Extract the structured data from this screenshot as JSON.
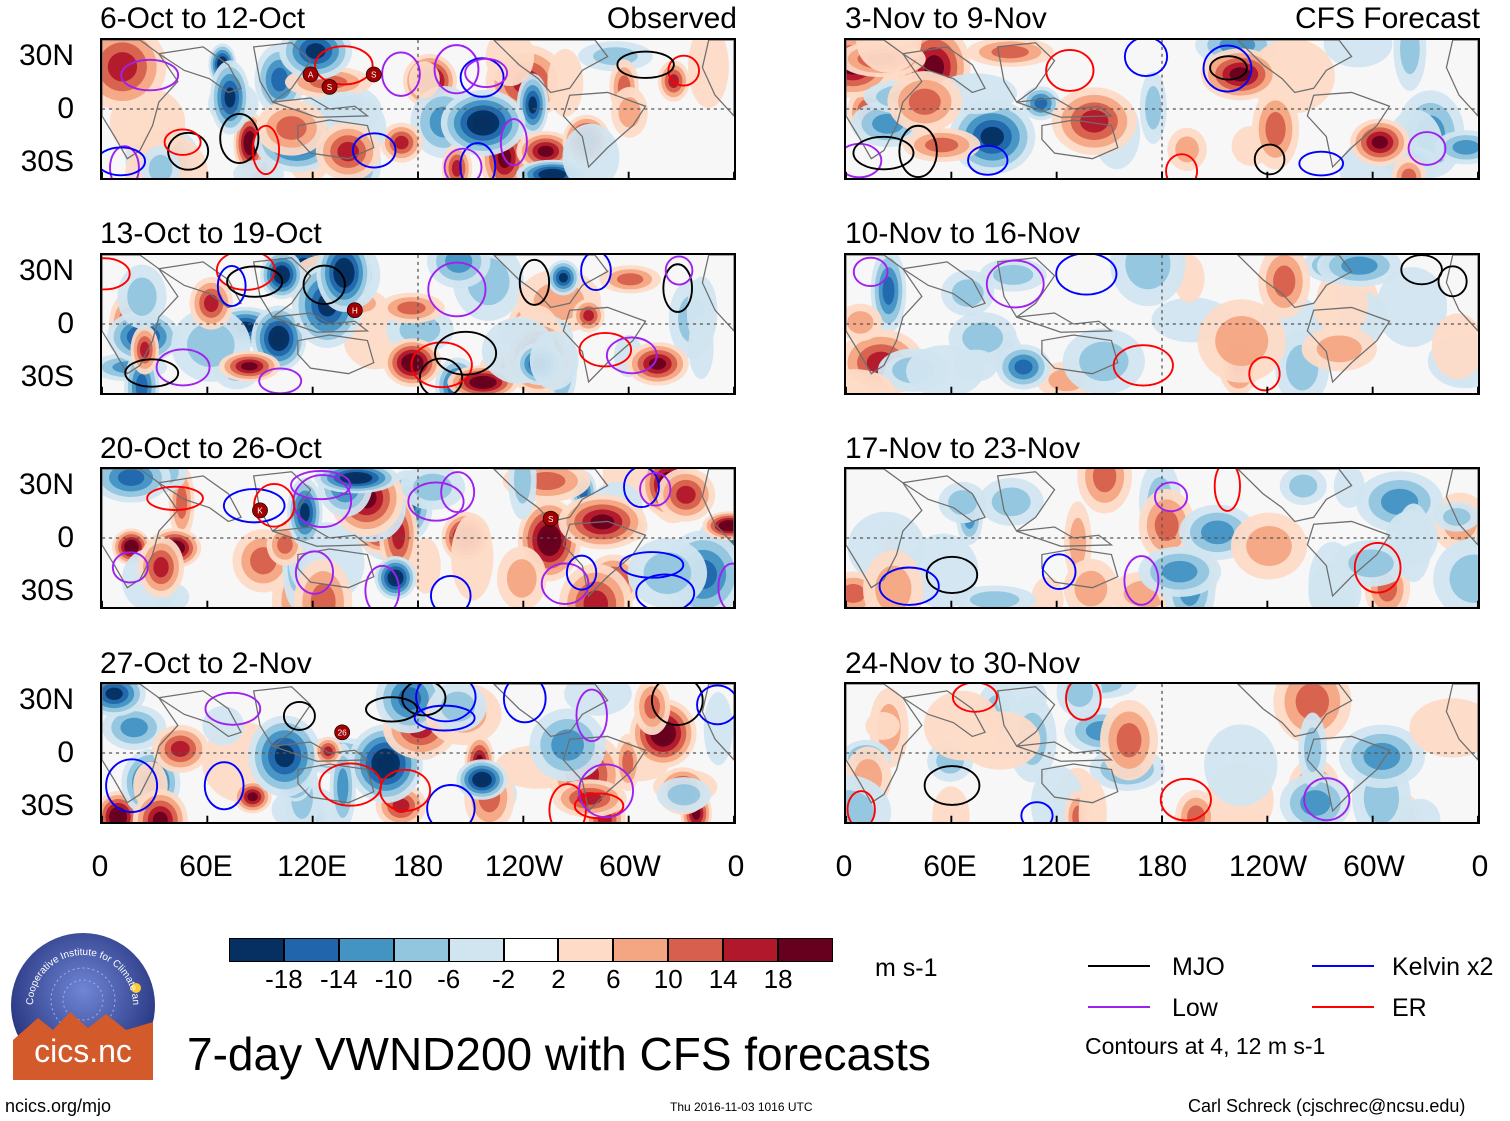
{
  "figure": {
    "main_title": "7-day VWND200 with CFS forecasts",
    "website": "ncics.org/mjo",
    "timestamp": "Thu 2016-11-03 1016 UTC",
    "author": "Carl Schreck (cjschrec@ncsu.edu)",
    "logo": {
      "ring_text": "Cooperative Institute for Climate and Satellites",
      "name": "cics.nc"
    },
    "observed_label": "Observed",
    "forecast_label": "CFS Forecast"
  },
  "panels_left": [
    {
      "title": "6-Oct to 12-Oct"
    },
    {
      "title": "13-Oct to 19-Oct"
    },
    {
      "title": "20-Oct to 26-Oct"
    },
    {
      "title": "27-Oct to 2-Nov"
    }
  ],
  "panels_right": [
    {
      "title": "3-Nov to 9-Nov"
    },
    {
      "title": "10-Nov to 16-Nov"
    },
    {
      "title": "17-Nov to 23-Nov"
    },
    {
      "title": "24-Nov to 30-Nov"
    }
  ],
  "lat_labels": [
    "30N",
    "0",
    "30S"
  ],
  "lon_labels": [
    "0",
    "60E",
    "120E",
    "180",
    "120W",
    "60W",
    "0"
  ],
  "colorbar": {
    "units": "m s-1",
    "tick_labels": [
      "-18",
      "-14",
      "-10",
      "-6",
      "-2",
      "2",
      "6",
      "10",
      "14",
      "18"
    ],
    "colors": [
      "#053061",
      "#2166ac",
      "#4393c3",
      "#92c5de",
      "#d1e5f0",
      "#ffffff",
      "#fddbc7",
      "#f4a582",
      "#d6604d",
      "#b2182b",
      "#67001f"
    ]
  },
  "legend": {
    "items": [
      {
        "label": "MJO",
        "color": "#000000"
      },
      {
        "label": "Kelvin x2",
        "color": "#0000ff"
      },
      {
        "label": "Low",
        "color": "#a020f0"
      },
      {
        "label": "ER",
        "color": "#ff0000"
      }
    ],
    "note": "Contours at 4, 12 m s-1"
  },
  "storm_markers": [
    {
      "panel": 0,
      "label": "A"
    },
    {
      "panel": 0,
      "label": "S"
    },
    {
      "panel": 0,
      "label": "S"
    },
    {
      "panel": 1,
      "label": "H"
    },
    {
      "panel": 2,
      "label": "K"
    },
    {
      "panel": 2,
      "label": "S"
    },
    {
      "panel": 3,
      "label": "26"
    }
  ]
}
